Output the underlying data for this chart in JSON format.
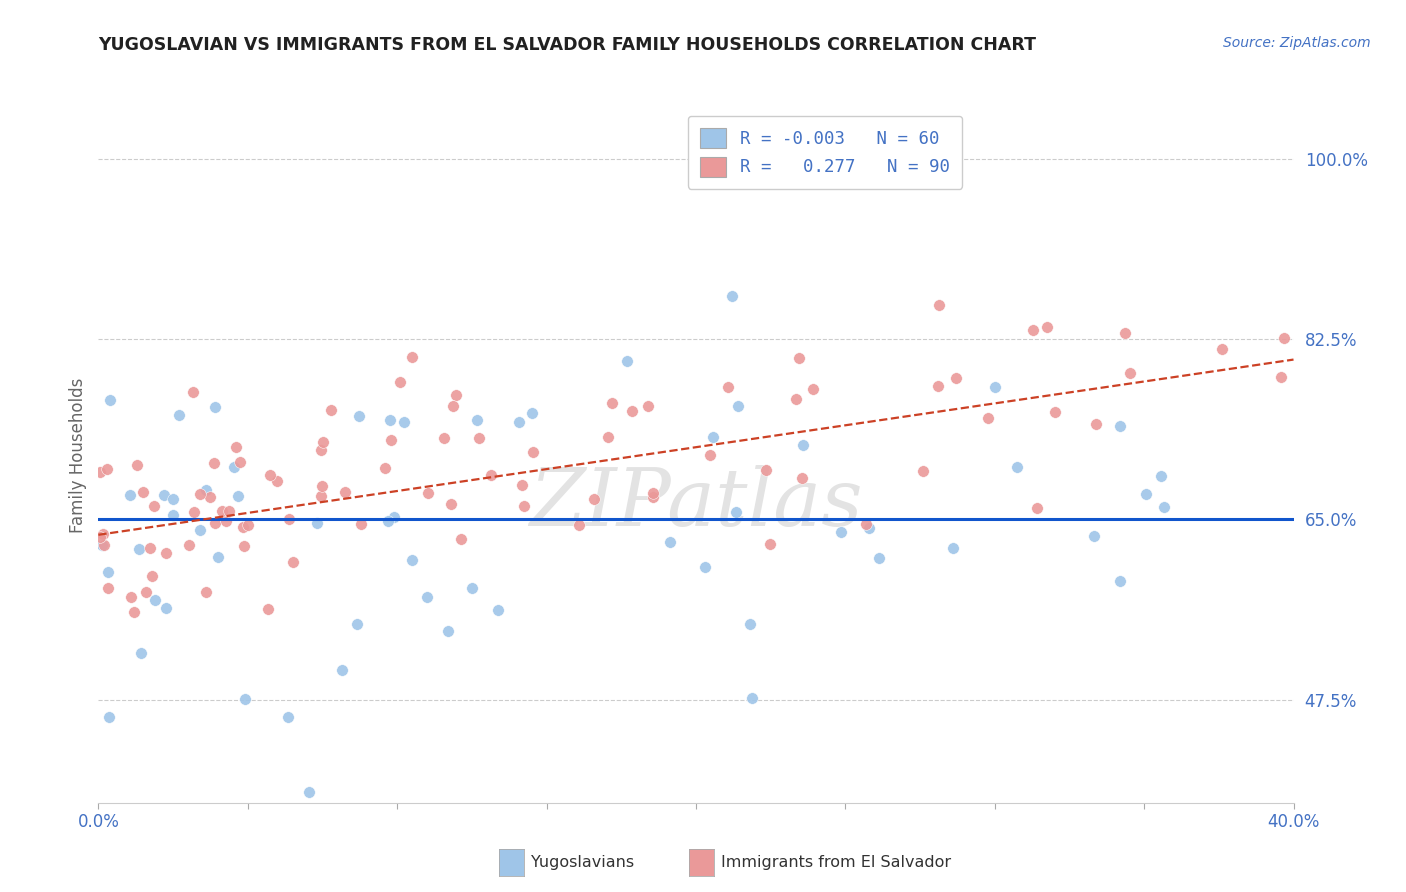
{
  "title": "YUGOSLAVIAN VS IMMIGRANTS FROM EL SALVADOR FAMILY HOUSEHOLDS CORRELATION CHART",
  "source": "Source: ZipAtlas.com",
  "ylabel": "Family Households",
  "ytick_labels": [
    "47.5%",
    "65.0%",
    "82.5%",
    "100.0%"
  ],
  "ytick_vals": [
    0.475,
    0.65,
    0.825,
    1.0
  ],
  "xlim": [
    0.0,
    0.4
  ],
  "ylim": [
    0.375,
    1.05
  ],
  "xtick_vals": [
    0.0,
    0.05,
    0.1,
    0.15,
    0.2,
    0.25,
    0.3,
    0.35,
    0.4
  ],
  "xtick_label_left": "0.0%",
  "xtick_label_right": "40.0%",
  "blue_color": "#9fc5e8",
  "pink_color": "#ea9999",
  "blue_line_color": "#1155cc",
  "pink_line_color": "#cc4125",
  "axis_tick_color": "#4472c4",
  "ylabel_color": "#666666",
  "title_color": "#212121",
  "grid_color": "#b7b7b7",
  "background_color": "#ffffff",
  "blue_line_y0": 0.65,
  "blue_line_y1": 0.65,
  "pink_line_y0": 0.635,
  "pink_line_y1": 0.805,
  "watermark": "ZIPatlas",
  "watermark_color": "#cccccc",
  "legend_label1": "R = -0.003   N = 60",
  "legend_label2": "R =   0.277   N = 90",
  "bottom_label1": "Yugoslavians",
  "bottom_label2": "Immigrants from El Salvador"
}
